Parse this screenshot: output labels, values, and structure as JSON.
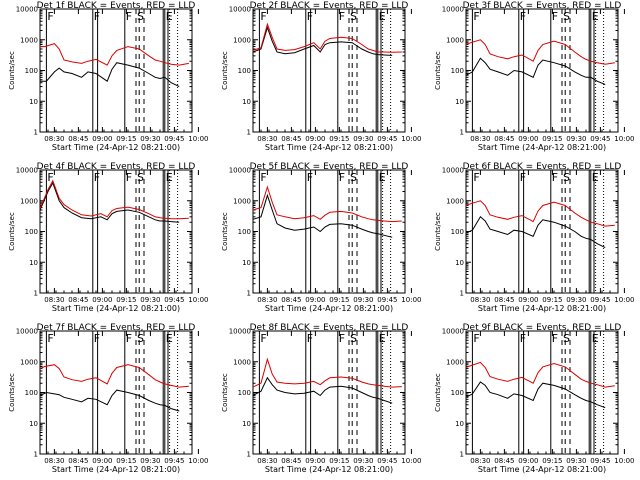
{
  "chart_data": {
    "type": "line",
    "layout": "3x3 grid",
    "legend": "in titles",
    "yscale": "log",
    "ylim": [
      1,
      10000
    ],
    "ytick_labels": [
      "1",
      "10",
      "100",
      "1000",
      "10000"
    ],
    "ylabel": "Counts/sec",
    "colors": {
      "events": "#000000",
      "lld": "#dd0000"
    },
    "x_markers": [
      "F",
      "F",
      "F",
      "S",
      "E"
    ],
    "panels": [
      {
        "title": "Det 1f BLACK = Events, RED = LLD",
        "xlabel": "Start Time (24-Apr-12 08:21:00)",
        "xtick_labels": [
          "08:30",
          "08:45",
          "09:00",
          "09:15",
          "09:30",
          "09:45",
          "10:00"
        ],
        "series": [
          {
            "name": "BLACK = Events",
            "x": [
              0,
              4,
              9,
              12,
              15,
              20,
              26,
              30,
              35,
              42,
              45,
              48,
              55,
              62,
              68,
              72,
              75,
              78,
              82,
              87
            ],
            "y": [
              45,
              45,
              90,
              120,
              90,
              80,
              60,
              90,
              80,
              45,
              110,
              180,
              150,
              120,
              80,
              60,
              55,
              60,
              40,
              30
            ]
          },
          {
            "name": "RED = LLD",
            "x": [
              0,
              3,
              9,
              12,
              15,
              20,
              26,
              30,
              35,
              42,
              45,
              48,
              55,
              62,
              68,
              72,
              75,
              78,
              82,
              87,
              93
            ],
            "y": [
              600,
              600,
              750,
              500,
              220,
              190,
              170,
              200,
              230,
              150,
              300,
              450,
              600,
              500,
              300,
              220,
              200,
              180,
              160,
              150,
              170
            ]
          }
        ]
      },
      {
        "title": "Det 2f BLACK = Events, RED = LLD",
        "xlabel": "Start Time (24-Apr-12 08:21:00)",
        "xtick_labels": [
          "08:30",
          "08:45",
          "09:00",
          "09:15",
          "09:30",
          "09:45",
          "10:00"
        ],
        "series": [
          {
            "name": "BLACK = Events",
            "x": [
              0,
              5,
              9,
              12,
              15,
              20,
              26,
              32,
              38,
              42,
              45,
              48,
              55,
              62,
              68,
              72,
              75,
              78,
              82,
              87
            ],
            "y": [
              400,
              500,
              2500,
              900,
              400,
              350,
              380,
              500,
              650,
              400,
              700,
              800,
              850,
              800,
              500,
              400,
              350,
              330,
              320,
              310
            ]
          },
          {
            "name": "RED = LLD",
            "x": [
              0,
              5,
              9,
              12,
              15,
              20,
              26,
              32,
              38,
              42,
              45,
              48,
              55,
              62,
              68,
              72,
              75,
              78,
              82,
              87,
              93
            ],
            "y": [
              450,
              550,
              3200,
              1200,
              500,
              450,
              480,
              600,
              800,
              500,
              900,
              1100,
              1200,
              1100,
              700,
              500,
              450,
              400,
              400,
              390,
              400
            ]
          }
        ]
      },
      {
        "title": "Det 3f BLACK = Events, RED = LLD",
        "xlabel": "Start Time (24-Apr-12 08:21:00)",
        "xtick_labels": [
          "08:30",
          "08:45",
          "09:00",
          "09:15",
          "09:30",
          "09:45",
          "10:00"
        ],
        "series": [
          {
            "name": "BLACK = Events",
            "x": [
              0,
              4,
              9,
              12,
              15,
              20,
              26,
              30,
              35,
              42,
              45,
              48,
              55,
              62,
              68,
              72,
              75,
              78,
              82,
              87
            ],
            "y": [
              70,
              90,
              250,
              180,
              110,
              90,
              70,
              100,
              90,
              60,
              150,
              220,
              180,
              140,
              90,
              70,
              60,
              60,
              45,
              35
            ]
          },
          {
            "name": "RED = LLD",
            "x": [
              0,
              3,
              9,
              12,
              15,
              20,
              26,
              30,
              35,
              42,
              45,
              48,
              55,
              62,
              68,
              72,
              75,
              78,
              82,
              87,
              93
            ],
            "y": [
              700,
              800,
              1000,
              700,
              350,
              280,
              240,
              280,
              320,
              200,
              450,
              700,
              900,
              700,
              400,
              280,
              230,
              200,
              180,
              160,
              180
            ]
          }
        ]
      },
      {
        "title": "Det 4f BLACK = Events, RED = LLD",
        "xlabel": "Start Time (24-Apr-12 08:21:00)",
        "xtick_labels": [
          "08:30",
          "08:45",
          "09:00",
          "09:15",
          "09:30",
          "09:45",
          "10:00"
        ],
        "series": [
          {
            "name": "BLACK = Events",
            "x": [
              0,
              5,
              8,
              12,
              15,
              20,
              26,
              32,
              38,
              42,
              45,
              48,
              55,
              62,
              68,
              72,
              75,
              78,
              82,
              87
            ],
            "y": [
              500,
              2000,
              3800,
              1000,
              600,
              400,
              280,
              260,
              300,
              240,
              380,
              450,
              500,
              420,
              300,
              240,
              220,
              220,
              210,
              200
            ]
          },
          {
            "name": "RED = LLD",
            "x": [
              0,
              5,
              8,
              12,
              15,
              20,
              26,
              32,
              38,
              42,
              45,
              48,
              55,
              62,
              68,
              72,
              75,
              78,
              82,
              87,
              93
            ],
            "y": [
              550,
              2300,
              4500,
              1200,
              750,
              500,
              350,
              320,
              380,
              300,
              480,
              560,
              620,
              520,
              380,
              300,
              280,
              270,
              260,
              260,
              270
            ]
          }
        ]
      },
      {
        "title": "Det 5f BLACK = Events, RED = LLD",
        "xlabel": "Start Time (24-Apr-12 08:21:00)",
        "xtick_labels": [
          "08:30",
          "08:45",
          "09:00",
          "09:15",
          "09:30",
          "09:45",
          "10:00"
        ],
        "series": [
          {
            "name": "BLACK = Events",
            "x": [
              0,
              5,
              9,
              12,
              15,
              20,
              26,
              32,
              38,
              42,
              45,
              48,
              55,
              62,
              68,
              72,
              75,
              78,
              82,
              87
            ],
            "y": [
              250,
              300,
              1500,
              500,
              180,
              130,
              110,
              120,
              140,
              100,
              140,
              170,
              180,
              160,
              120,
              100,
              90,
              85,
              75,
              65
            ]
          },
          {
            "name": "RED = LLD",
            "x": [
              0,
              5,
              9,
              12,
              15,
              20,
              26,
              32,
              38,
              42,
              45,
              48,
              55,
              62,
              68,
              72,
              75,
              78,
              82,
              87,
              93
            ],
            "y": [
              500,
              600,
              2800,
              900,
              350,
              300,
              260,
              280,
              330,
              250,
              340,
              420,
              450,
              400,
              300,
              260,
              240,
              230,
              220,
              210,
              220
            ]
          }
        ]
      },
      {
        "title": "Det 6f BLACK = Events, RED = LLD",
        "xlabel": "Start Time (24-Apr-12 08:21:00)",
        "xtick_labels": [
          "08:30",
          "08:45",
          "09:00",
          "09:15",
          "09:30",
          "09:45",
          "10:00"
        ],
        "series": [
          {
            "name": "BLACK = Events",
            "x": [
              0,
              4,
              9,
              12,
              15,
              20,
              26,
              30,
              35,
              42,
              45,
              48,
              55,
              62,
              68,
              72,
              75,
              78,
              82,
              87
            ],
            "y": [
              90,
              110,
              300,
              220,
              120,
              100,
              80,
              110,
              100,
              70,
              160,
              240,
              200,
              150,
              100,
              70,
              60,
              55,
              40,
              30
            ]
          },
          {
            "name": "RED = LLD",
            "x": [
              0,
              3,
              9,
              12,
              15,
              20,
              26,
              30,
              35,
              42,
              45,
              48,
              55,
              62,
              68,
              72,
              75,
              78,
              82,
              87,
              93
            ],
            "y": [
              700,
              800,
              1000,
              700,
              350,
              290,
              250,
              290,
              330,
              210,
              460,
              700,
              900,
              700,
              400,
              290,
              240,
              200,
              180,
              150,
              160
            ]
          }
        ]
      },
      {
        "title": "Det 7f BLACK = Events, RED = LLD",
        "xlabel": "Start Time (24-Apr-12 08:21:00)",
        "xtick_labels": [
          "08:30",
          "08:45",
          "09:00",
          "09:15",
          "09:30",
          "09:45",
          "10:00"
        ],
        "series": [
          {
            "name": "BLACK = Events",
            "x": [
              0,
              4,
              9,
              12,
              15,
              20,
              26,
              30,
              35,
              42,
              45,
              48,
              55,
              62,
              68,
              72,
              75,
              78,
              82,
              87
            ],
            "y": [
              80,
              100,
              90,
              85,
              70,
              60,
              50,
              65,
              60,
              40,
              80,
              120,
              100,
              80,
              55,
              45,
              40,
              38,
              30,
              25
            ]
          },
          {
            "name": "RED = LLD",
            "x": [
              0,
              3,
              9,
              12,
              15,
              20,
              26,
              30,
              35,
              42,
              45,
              48,
              55,
              62,
              68,
              72,
              75,
              78,
              82,
              87,
              93
            ],
            "y": [
              600,
              700,
              800,
              600,
              320,
              260,
              230,
              270,
              300,
              190,
              420,
              650,
              800,
              650,
              380,
              260,
              220,
              190,
              170,
              150,
              160
            ]
          }
        ]
      },
      {
        "title": "Det 8f BLACK = Events, RED = LLD",
        "xlabel": "Start Time (24-Apr-12 08:21:00)",
        "xtick_labels": [
          "08:30",
          "08:45",
          "09:00",
          "09:15",
          "09:30",
          "09:45",
          "10:00"
        ],
        "series": [
          {
            "name": "BLACK = Events",
            "x": [
              0,
              5,
              9,
              12,
              15,
              20,
              26,
              32,
              38,
              42,
              45,
              48,
              55,
              62,
              68,
              72,
              75,
              78,
              82,
              87
            ],
            "y": [
              80,
              110,
              300,
              180,
              120,
              100,
              90,
              95,
              110,
              80,
              120,
              150,
              160,
              140,
              100,
              80,
              70,
              65,
              55,
              45
            ]
          },
          {
            "name": "RED = LLD",
            "x": [
              0,
              5,
              9,
              12,
              15,
              20,
              26,
              32,
              38,
              42,
              45,
              48,
              55,
              62,
              68,
              72,
              75,
              78,
              82,
              87,
              93
            ],
            "y": [
              150,
              200,
              1200,
              400,
              220,
              200,
              190,
              200,
              230,
              180,
              240,
              300,
              320,
              290,
              220,
              190,
              180,
              170,
              160,
              150,
              155
            ]
          }
        ]
      },
      {
        "title": "Det 9f BLACK = Events, RED = LLD",
        "xlabel": "Start Time (24-Apr-12 08:21:00)",
        "xtick_labels": [
          "08:30",
          "08:45",
          "09:00",
          "09:15",
          "09:30",
          "09:45",
          "10:00"
        ],
        "series": [
          {
            "name": "BLACK = Events",
            "x": [
              0,
              4,
              9,
              12,
              15,
              20,
              26,
              30,
              35,
              42,
              45,
              48,
              55,
              62,
              68,
              72,
              75,
              78,
              82,
              87
            ],
            "y": [
              70,
              90,
              220,
              170,
              100,
              85,
              65,
              90,
              80,
              55,
              130,
              200,
              170,
              130,
              85,
              65,
              55,
              50,
              40,
              32
            ]
          },
          {
            "name": "RED = LLD",
            "x": [
              0,
              3,
              9,
              12,
              15,
              20,
              26,
              30,
              35,
              42,
              45,
              48,
              55,
              62,
              68,
              72,
              75,
              78,
              82,
              87,
              93
            ],
            "y": [
              650,
              750,
              950,
              650,
              330,
              270,
              230,
              270,
              310,
              200,
              440,
              680,
              880,
              680,
              390,
              270,
              230,
              200,
              180,
              150,
              165
            ]
          }
        ]
      }
    ]
  }
}
